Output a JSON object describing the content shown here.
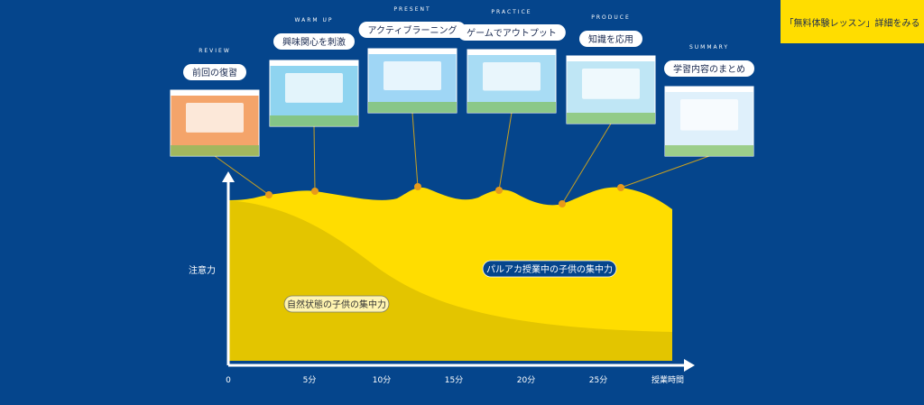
{
  "button": "「無料体験レッスン」詳細をみる",
  "stages": [
    {
      "phase": "REVIEW",
      "label": "前回の復習"
    },
    {
      "phase": "WARM UP",
      "label": "興味関心を刺激"
    },
    {
      "phase": "PRESENT",
      "label": "アクティブラーニング"
    },
    {
      "phase": "PRACTICE",
      "label": "ゲームでアウトプット"
    },
    {
      "phase": "PRODUCE",
      "label": "知識を応用"
    },
    {
      "phase": "SUMMARY",
      "label": "学習内容のまとめ"
    }
  ],
  "y_axis_label": "注意力",
  "x_axis": {
    "ticks": [
      "0",
      "5分",
      "10分",
      "15分",
      "20分",
      "25分"
    ],
    "label": "授業時間"
  },
  "area_labels": {
    "palaca": "パルアカ授業中の子供の集中力",
    "natural": "自然状態の子供の集中力"
  }
}
